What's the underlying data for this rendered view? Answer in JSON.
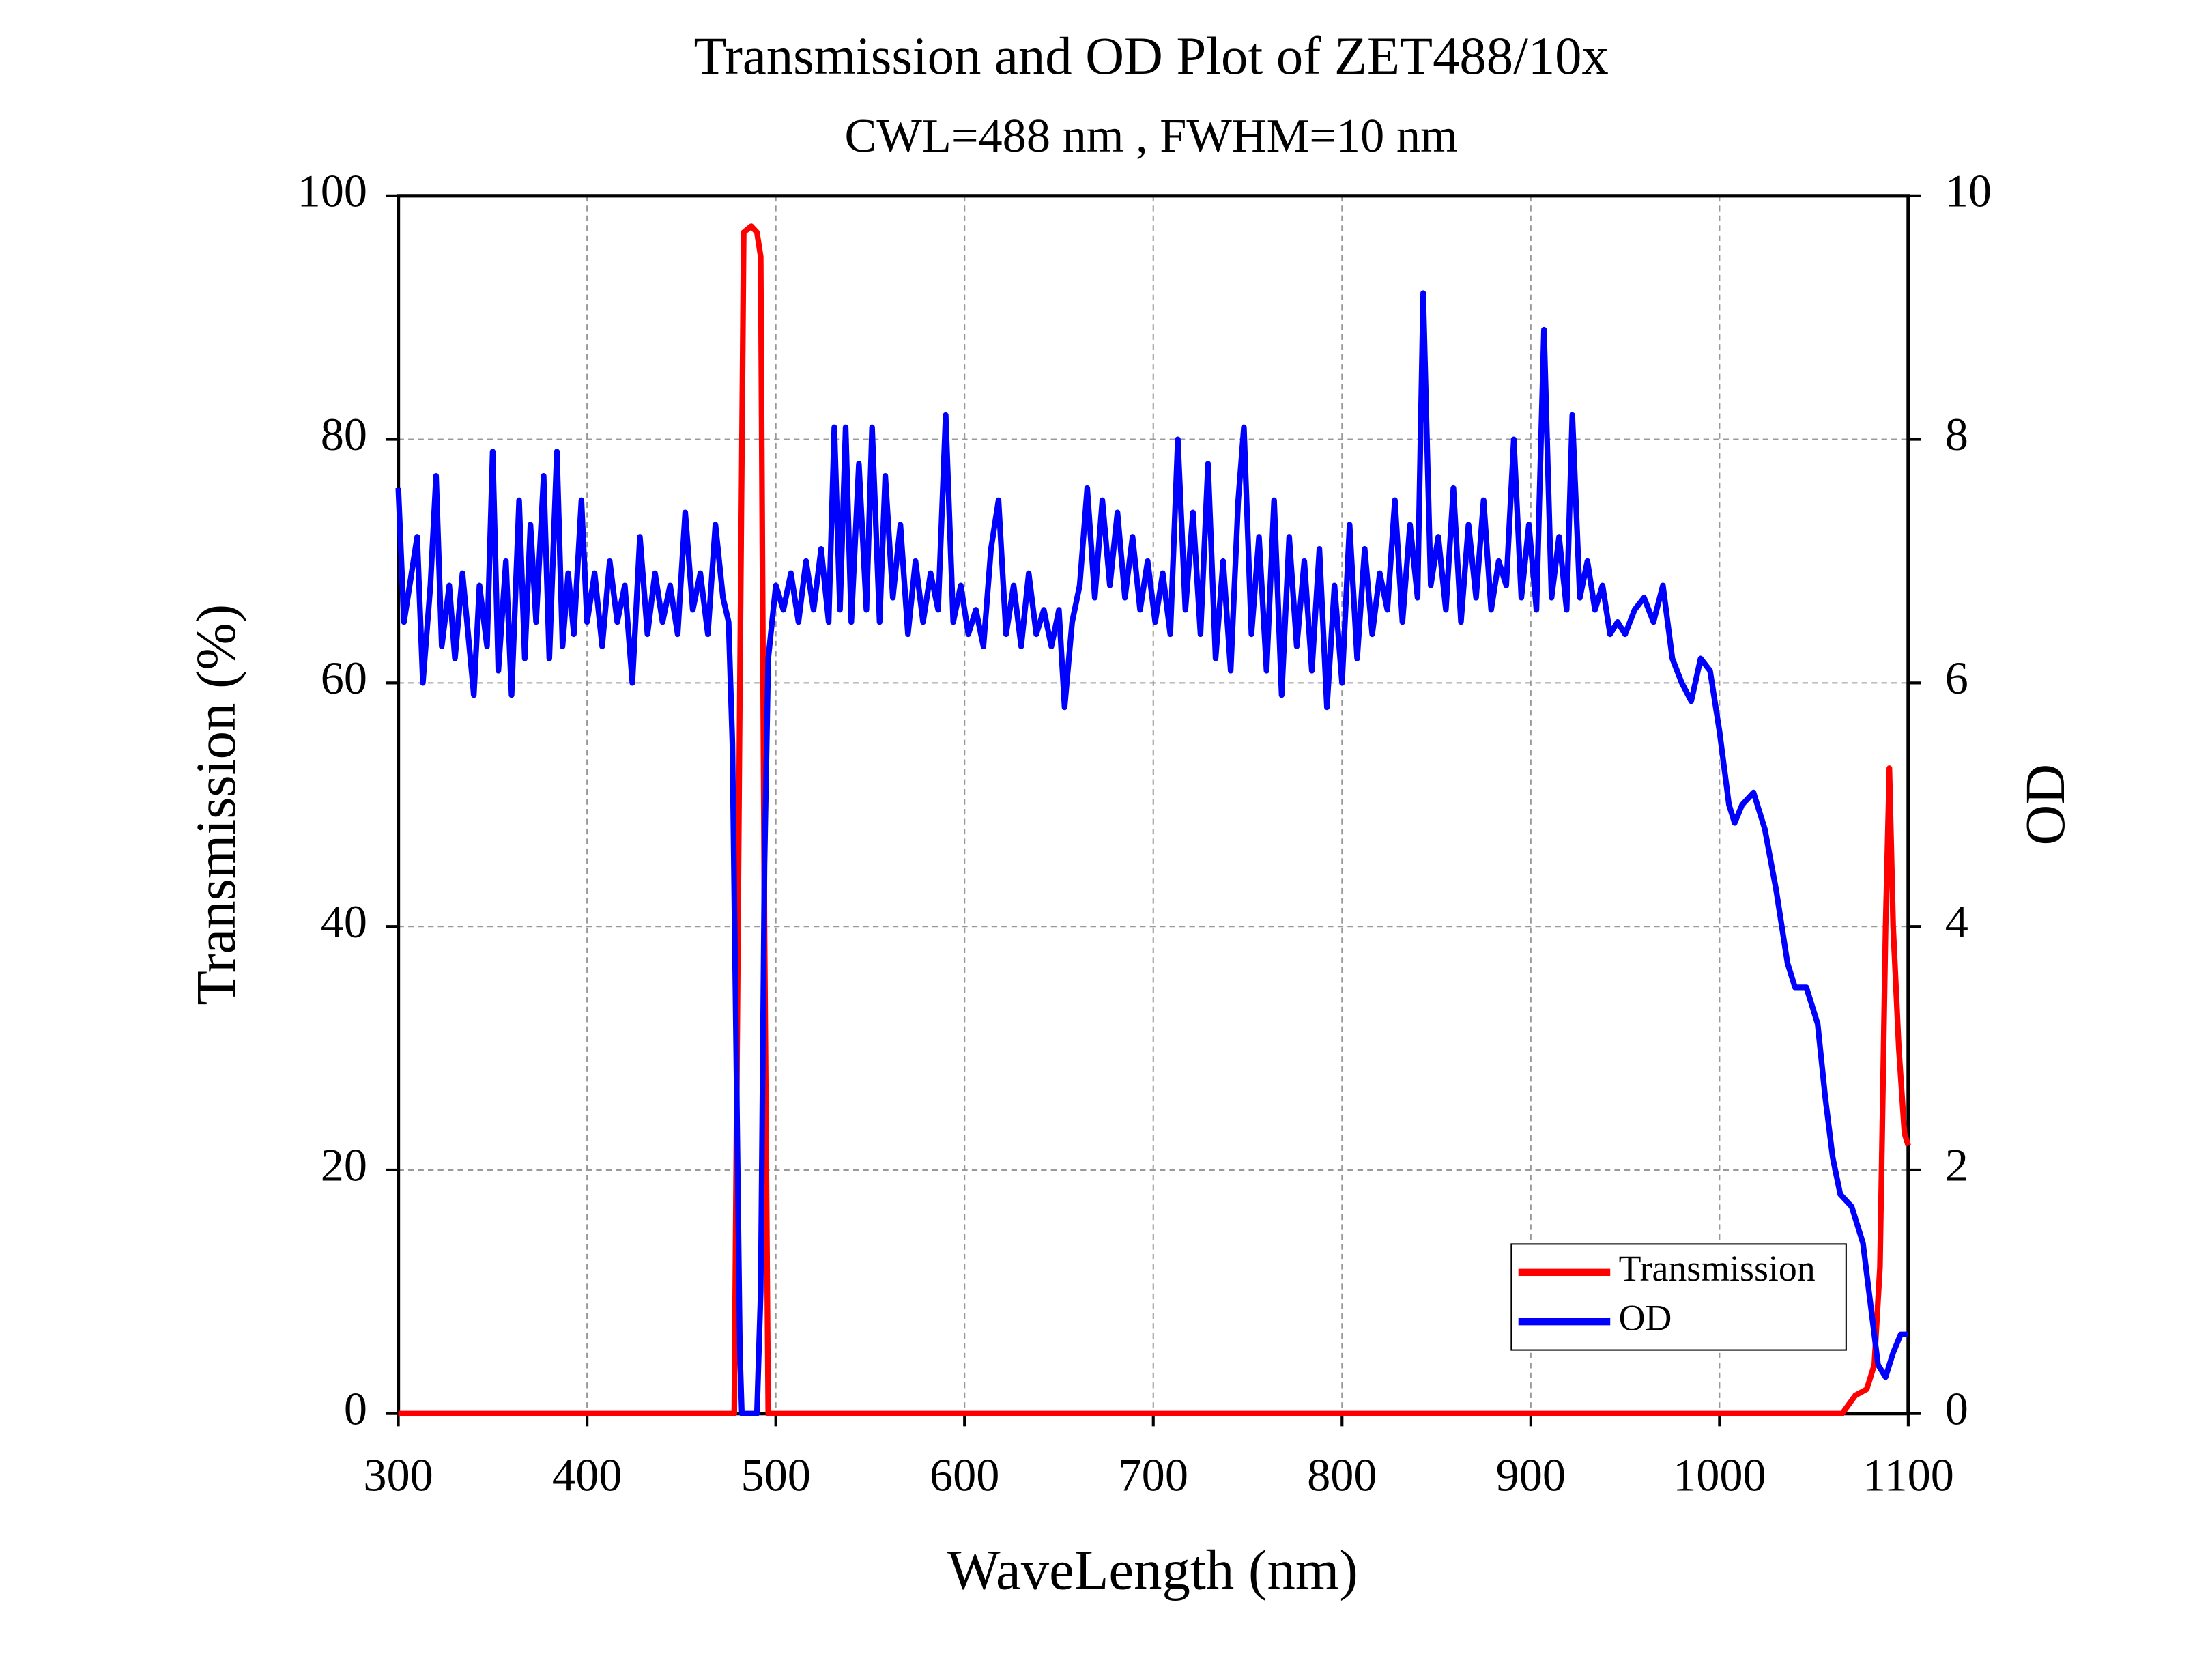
{
  "chart_data": {
    "type": "line",
    "title": "Transmission and OD Plot of ZET488/10x",
    "subtitle": "CWL=488 nm , FWHM=10 nm",
    "x_label": "WaveLength (nm)",
    "y_label": "Transmission (%)",
    "y2_label": "OD",
    "xlim": [
      300,
      1100
    ],
    "xticks": [
      300,
      400,
      500,
      600,
      700,
      800,
      900,
      1000,
      1100
    ],
    "ylim": [
      0,
      100
    ],
    "yticks": [
      0,
      20,
      40,
      60,
      80,
      100
    ],
    "y2lim": [
      0,
      10
    ],
    "y2ticks": [
      0,
      2,
      4,
      6,
      8,
      10
    ],
    "grid": true,
    "legend": "lower right",
    "series": [
      {
        "name": "Transmission",
        "color": "#ff0000",
        "x": [
          300,
          478,
          481,
          483,
          487,
          490,
          492,
          494,
          496,
          1065,
          1072,
          1078,
          1082,
          1085,
          1088,
          1090,
          1092,
          1095,
          1098,
          1100
        ],
        "values": [
          0,
          0,
          60,
          97,
          97.5,
          97,
          95,
          40,
          0,
          0,
          1.5,
          2,
          4,
          12,
          40,
          53,
          40,
          30,
          23,
          22
        ]
      },
      {
        "name": "OD",
        "color": "#0000ff",
        "axis": "y2",
        "x": [
          300,
          303,
          307,
          310,
          313,
          317,
          320,
          323,
          327,
          330,
          334,
          337,
          340,
          343,
          347,
          350,
          353,
          357,
          360,
          364,
          367,
          370,
          373,
          377,
          380,
          384,
          387,
          390,
          393,
          397,
          400,
          404,
          408,
          412,
          416,
          420,
          424,
          428,
          432,
          436,
          440,
          444,
          448,
          452,
          456,
          460,
          464,
          468,
          472,
          475,
          477,
          479,
          481,
          482,
          490,
          492,
          494,
          496,
          500,
          504,
          508,
          512,
          516,
          520,
          524,
          528,
          531,
          534,
          537,
          540,
          544,
          548,
          551,
          555,
          558,
          562,
          566,
          570,
          574,
          578,
          582,
          586,
          590,
          594,
          598,
          602,
          606,
          610,
          614,
          618,
          622,
          626,
          630,
          634,
          638,
          642,
          646,
          650,
          653,
          657,
          661,
          665,
          669,
          673,
          677,
          681,
          685,
          689,
          693,
          697,
          701,
          705,
          709,
          713,
          717,
          721,
          725,
          729,
          733,
          737,
          741,
          745,
          748,
          752,
          756,
          760,
          764,
          768,
          772,
          776,
          780,
          784,
          788,
          792,
          796,
          800,
          804,
          808,
          812,
          816,
          820,
          824,
          828,
          832,
          836,
          840,
          843,
          847,
          851,
          855,
          859,
          863,
          867,
          871,
          875,
          879,
          883,
          887,
          891,
          895,
          899,
          903,
          907,
          911,
          915,
          919,
          922,
          926,
          930,
          934,
          938,
          942,
          946,
          950,
          955,
          960,
          965,
          970,
          975,
          980,
          985,
          990,
          995,
          1000,
          1005,
          1008,
          1012,
          1018,
          1024,
          1030,
          1036,
          1040,
          1046,
          1052,
          1056,
          1060,
          1064,
          1070,
          1076,
          1080,
          1084,
          1088,
          1092,
          1096,
          1100
        ],
        "values": [
          7.6,
          6.5,
          6.9,
          7.2,
          6.0,
          6.8,
          7.7,
          6.3,
          6.8,
          6.2,
          6.9,
          6.4,
          5.9,
          6.8,
          6.3,
          7.9,
          6.1,
          7.0,
          5.9,
          7.5,
          6.2,
          7.3,
          6.5,
          7.7,
          6.2,
          7.9,
          6.3,
          6.9,
          6.4,
          7.5,
          6.5,
          6.9,
          6.3,
          7.0,
          6.5,
          6.8,
          6.0,
          7.2,
          6.4,
          6.9,
          6.5,
          6.8,
          6.4,
          7.4,
          6.6,
          6.9,
          6.4,
          7.3,
          6.7,
          6.5,
          5.5,
          3,
          0.5,
          0,
          0,
          1,
          4.5,
          6.2,
          6.8,
          6.6,
          6.9,
          6.5,
          7.0,
          6.6,
          7.1,
          6.5,
          8.1,
          6.6,
          8.1,
          6.5,
          7.8,
          6.6,
          8.1,
          6.5,
          7.7,
          6.7,
          7.3,
          6.4,
          7.0,
          6.5,
          6.9,
          6.6,
          8.2,
          6.5,
          6.8,
          6.4,
          6.6,
          6.3,
          7.1,
          7.5,
          6.4,
          6.8,
          6.3,
          6.9,
          6.4,
          6.6,
          6.3,
          6.6,
          5.8,
          6.5,
          6.8,
          7.6,
          6.7,
          7.5,
          6.8,
          7.4,
          6.7,
          7.2,
          6.6,
          7.0,
          6.5,
          6.9,
          6.4,
          8.0,
          6.6,
          7.4,
          6.4,
          7.8,
          6.2,
          7.0,
          6.1,
          7.5,
          8.1,
          6.4,
          7.2,
          6.1,
          7.5,
          5.9,
          7.2,
          6.3,
          7.0,
          6.1,
          7.1,
          5.8,
          6.8,
          6.0,
          7.3,
          6.2,
          7.1,
          6.4,
          6.9,
          6.6,
          7.5,
          6.5,
          7.3,
          6.7,
          9.2,
          6.8,
          7.2,
          6.6,
          7.6,
          6.5,
          7.3,
          6.7,
          7.5,
          6.6,
          7.0,
          6.8,
          8.0,
          6.7,
          7.3,
          6.6,
          8.9,
          6.7,
          7.2,
          6.6,
          8.2,
          6.7,
          7.0,
          6.6,
          6.8,
          6.4,
          6.5,
          6.4,
          6.6,
          6.7,
          6.5,
          6.8,
          6.2,
          6.0,
          5.85,
          6.2,
          6.1,
          5.6,
          5.0,
          4.85,
          5.0,
          5.1,
          4.8,
          4.3,
          3.7,
          3.5,
          3.5,
          3.2,
          2.6,
          2.1,
          1.8,
          1.7,
          1.4,
          0.9,
          0.4,
          0.3,
          0.5,
          0.65,
          0.65
        ]
      }
    ]
  }
}
